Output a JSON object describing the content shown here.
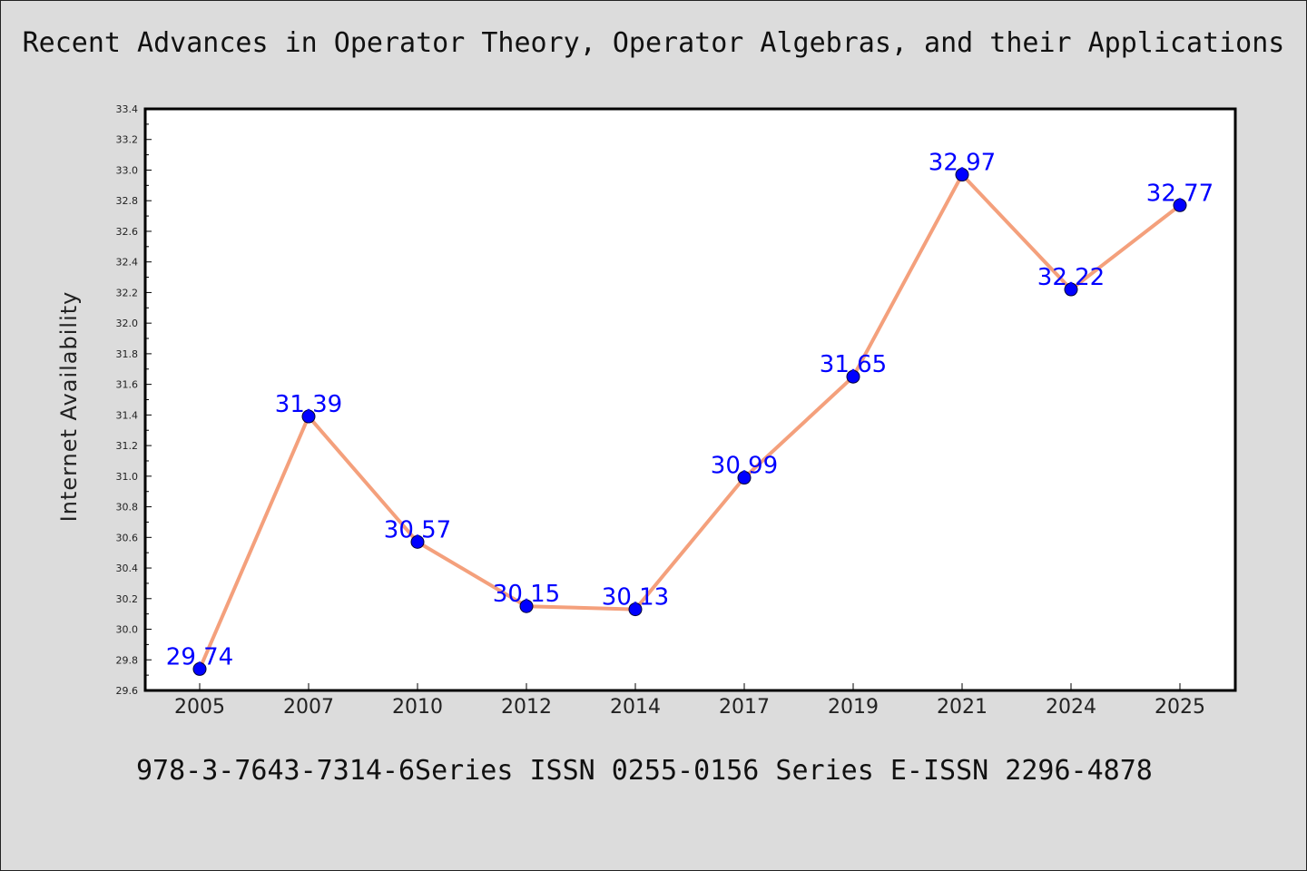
{
  "title": "Recent Advances in Operator Theory, Operator Algebras, and their Applications",
  "footer": "978-3-7643-7314-6Series ISSN 0255-0156 Series E-ISSN 2296-4878",
  "colors": {
    "background": "#dcdcdc",
    "plot_background": "#ffffff",
    "line": "#f4a07c",
    "marker": "#0000ff",
    "data_label": "#0000ff"
  },
  "chart_data": {
    "type": "line",
    "title": "Recent Advances in Operator Theory, Operator Algebras, and their Applications",
    "xlabel": "",
    "ylabel": "Internet Availability",
    "categories": [
      "2005",
      "2007",
      "2010",
      "2012",
      "2014",
      "2017",
      "2019",
      "2021",
      "2024",
      "2025"
    ],
    "series": [
      {
        "values": [
          29.74,
          31.39,
          30.57,
          30.15,
          30.13,
          30.99,
          31.65,
          32.97,
          32.22,
          32.77
        ]
      }
    ],
    "data_labels": [
      "29.74",
      "31.39",
      "30.57",
      "30.15",
      "30.13",
      "30.99",
      "31.65",
      "32.97",
      "32.22",
      "32.77"
    ],
    "ylim": [
      29.6,
      33.4
    ],
    "yticks": [
      "29.6",
      "29.8",
      "30.0",
      "30.2",
      "30.4",
      "30.6",
      "30.8",
      "31.0",
      "31.2",
      "31.4",
      "31.6",
      "31.8",
      "32.0",
      "32.2",
      "32.4",
      "32.6",
      "32.8",
      "33.0",
      "33.2",
      "33.4"
    ],
    "grid": false,
    "legend": "none"
  }
}
